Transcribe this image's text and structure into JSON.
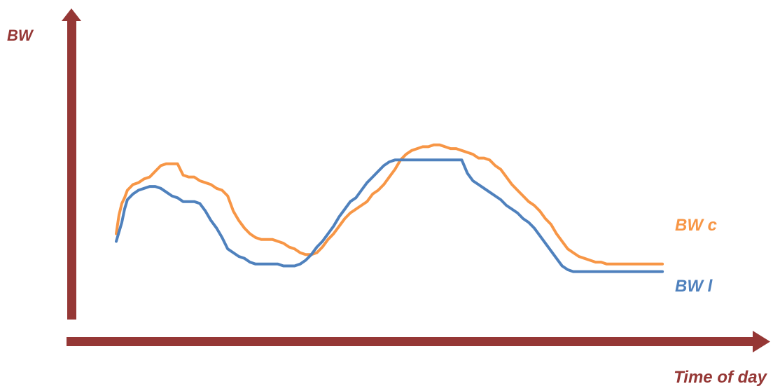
{
  "chart_data": {
    "type": "line",
    "title": "",
    "ylabel": "BW",
    "xlabel": "Time of day",
    "colors": {
      "axis": "#953735",
      "axis_label": "#953735"
    },
    "xlim": [
      0,
      100
    ],
    "ylim": [
      0,
      100
    ],
    "series": [
      {
        "name": "BW c",
        "color": "#F79646",
        "x": [
          0,
          0.5,
          1,
          1.5,
          2,
          3,
          4,
          5,
          6,
          7,
          8,
          9,
          10,
          11,
          12,
          13,
          14,
          15,
          16,
          17,
          18,
          19,
          20,
          21,
          22,
          23,
          24,
          25,
          26,
          27,
          28,
          29,
          30,
          31,
          32,
          33,
          34,
          35,
          36,
          37,
          38,
          39,
          40,
          41,
          42,
          43,
          44,
          45,
          46,
          47,
          48,
          49,
          50,
          51,
          52,
          53,
          54,
          55,
          56,
          57,
          58,
          59,
          60,
          61,
          62,
          63,
          64,
          65,
          66,
          67,
          68,
          69,
          70,
          71,
          72,
          73,
          74,
          75,
          76,
          77,
          78,
          79,
          80,
          81,
          82,
          83,
          84,
          85,
          86,
          87,
          88,
          89,
          90,
          91,
          92,
          93,
          94,
          95,
          96,
          97,
          98
        ],
        "values": [
          32,
          42,
          48,
          51,
          55,
          58,
          59,
          61,
          62,
          65,
          68,
          69,
          69,
          69,
          63,
          62,
          62,
          60,
          59,
          58,
          56,
          55,
          52,
          44,
          39,
          35,
          32,
          30,
          29,
          29,
          29,
          28,
          27,
          25,
          24,
          22,
          21,
          21,
          22,
          25,
          29,
          32,
          36,
          40,
          43,
          45,
          47,
          49,
          53,
          55,
          58,
          62,
          66,
          71,
          74,
          76,
          77,
          78,
          78,
          79,
          79,
          78,
          77,
          77,
          76,
          75,
          74,
          72,
          72,
          71,
          68,
          66,
          62,
          58,
          55,
          52,
          49,
          47,
          44,
          40,
          37,
          32,
          28,
          24,
          22,
          20,
          19,
          18,
          17,
          17,
          16,
          16,
          16,
          16,
          16,
          16,
          16,
          16,
          16,
          16,
          16
        ]
      },
      {
        "name": "BW l",
        "color": "#4F81BD",
        "x": [
          0,
          0.5,
          1,
          1.5,
          2,
          3,
          4,
          5,
          6,
          7,
          8,
          9,
          10,
          11,
          12,
          13,
          14,
          15,
          16,
          17,
          18,
          19,
          20,
          21,
          22,
          23,
          24,
          25,
          26,
          27,
          28,
          29,
          30,
          31,
          32,
          33,
          34,
          35,
          36,
          37,
          38,
          39,
          40,
          41,
          42,
          43,
          44,
          45,
          46,
          47,
          48,
          49,
          50,
          51,
          52,
          53,
          54,
          55,
          56,
          57,
          58,
          59,
          60,
          61,
          62,
          63,
          64,
          65,
          66,
          67,
          68,
          69,
          70,
          71,
          72,
          73,
          74,
          75,
          76,
          77,
          78,
          79,
          80,
          81,
          82,
          83,
          84,
          85,
          86,
          87,
          88,
          89,
          90,
          91,
          92,
          93,
          94,
          95,
          96,
          97,
          98
        ],
        "values": [
          28,
          33,
          38,
          45,
          50,
          53,
          55,
          56,
          57,
          57,
          56,
          54,
          52,
          51,
          49,
          49,
          49,
          48,
          44,
          39,
          35,
          30,
          24,
          22,
          20,
          19,
          17,
          16,
          16,
          16,
          16,
          16,
          15,
          15,
          15,
          16,
          18,
          21,
          25,
          28,
          32,
          36,
          41,
          45,
          49,
          51,
          55,
          59,
          62,
          65,
          68,
          70,
          71,
          71,
          71,
          71,
          71,
          71,
          71,
          71,
          71,
          71,
          71,
          71,
          71,
          64,
          60,
          58,
          56,
          54,
          52,
          50,
          47,
          45,
          43,
          40,
          38,
          35,
          31,
          27,
          23,
          19,
          15,
          13,
          12,
          12,
          12,
          12,
          12,
          12,
          12,
          12,
          12,
          12,
          12,
          12,
          12,
          12,
          12,
          12,
          12
        ]
      }
    ]
  }
}
